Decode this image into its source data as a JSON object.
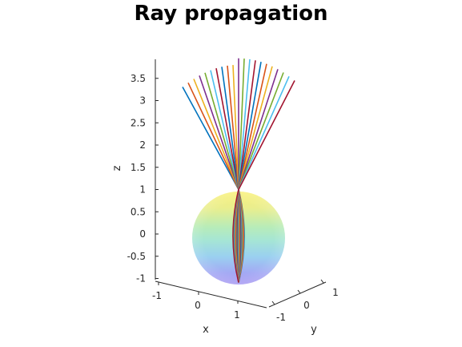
{
  "chart_data": {
    "type": "3d-line",
    "title": "Ray propagation",
    "xlabel": "x",
    "ylabel": "y",
    "zlabel": "z",
    "z_ticks": [
      "-1",
      "-0.5",
      "0",
      "0.5",
      "1",
      "1.5",
      "2",
      "2.5",
      "3",
      "3.5"
    ],
    "x_ticks": [
      "-1",
      "0",
      "1"
    ],
    "y_ticks": [
      "-1",
      "0",
      "1"
    ],
    "zlim": [
      -1,
      3.9
    ],
    "sphere": {
      "center": [
        0,
        0,
        0
      ],
      "radius": 1,
      "colormap": "parula"
    },
    "focal_point": {
      "x": 0,
      "y": 0,
      "z": 1
    },
    "ray_count": 21,
    "ray_entry_z": -1,
    "ray_top_z_range": [
      3.45,
      3.95
    ],
    "grid": false,
    "legend": "none"
  },
  "colors": {
    "series": [
      "#0072BD",
      "#D95319",
      "#EDB120",
      "#7E2F8E",
      "#77AC30",
      "#4DBEEE",
      "#A2142F"
    ],
    "axis": "#262626"
  }
}
